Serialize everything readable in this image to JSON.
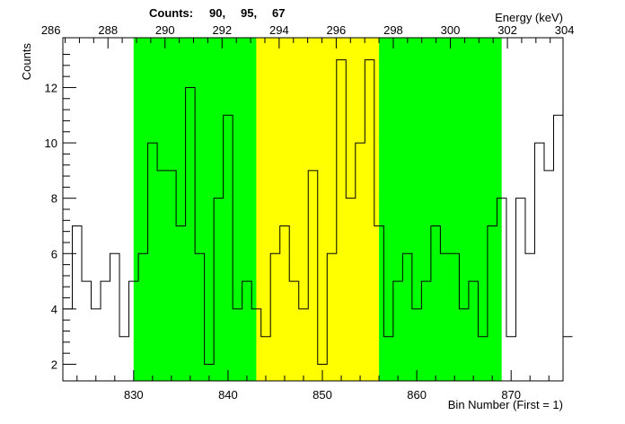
{
  "chart_data": {
    "type": "histogram",
    "title": "",
    "xlabel": "Bin Number (First = 1)",
    "ylabel": "Counts",
    "top_axis_label": "Energy (keV)",
    "counts_header": "Counts:",
    "counts_values": [
      "90,",
      "95,",
      "67"
    ],
    "xlim": [
      822.5,
      875.5
    ],
    "ylim": [
      1.4,
      13.8
    ],
    "top_axis_ticks": [
      286,
      288,
      290,
      292,
      294,
      296,
      298,
      300,
      302,
      304
    ],
    "bottom_axis_ticks": [
      830,
      840,
      850,
      860,
      870
    ],
    "y_ticks": [
      2,
      4,
      6,
      8,
      10,
      12
    ],
    "bins_start": 822.5,
    "bin_width": 1,
    "bin_counts": [
      4,
      7,
      5,
      4,
      5,
      6,
      3,
      5,
      6,
      10,
      9,
      9,
      7,
      12,
      6,
      2,
      8,
      11,
      4,
      5,
      4,
      3,
      6,
      7,
      5,
      4,
      9,
      2,
      6,
      13,
      8,
      10,
      13,
      7,
      3,
      5,
      6,
      4,
      5,
      7,
      6,
      6,
      4,
      5,
      3,
      7,
      8,
      3,
      8,
      6,
      10,
      9,
      11,
      3
    ],
    "regions": [
      {
        "name": "left background",
        "from": 830,
        "to": 843,
        "color": "#00ff00"
      },
      {
        "name": "peak",
        "from": 843,
        "to": 856,
        "color": "#ffff00"
      },
      {
        "name": "right background",
        "from": 856,
        "to": 869,
        "color": "#00ff00"
      }
    ],
    "line_color": "#000000",
    "grid": false,
    "legend": "none"
  }
}
